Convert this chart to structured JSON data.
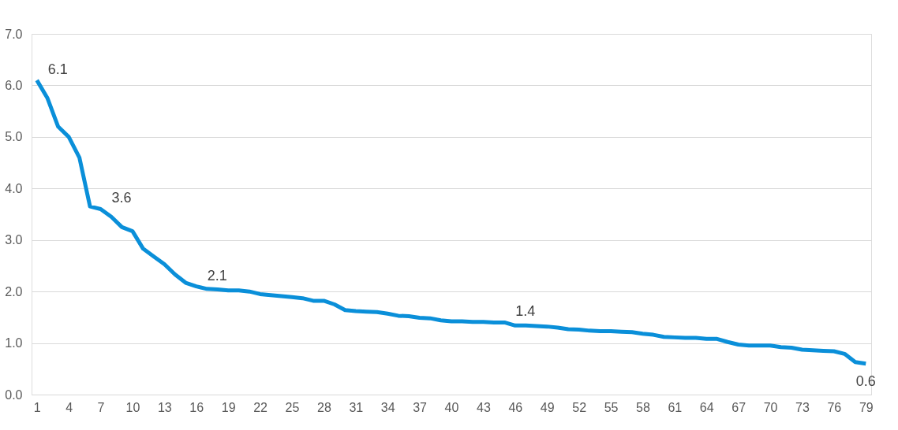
{
  "chart_data": {
    "type": "line",
    "x": [
      1,
      2,
      3,
      4,
      5,
      6,
      7,
      8,
      9,
      10,
      11,
      12,
      13,
      14,
      15,
      16,
      17,
      18,
      19,
      20,
      21,
      22,
      23,
      24,
      25,
      26,
      27,
      28,
      29,
      30,
      31,
      32,
      33,
      34,
      35,
      36,
      37,
      38,
      39,
      40,
      41,
      42,
      43,
      44,
      45,
      46,
      47,
      48,
      49,
      50,
      51,
      52,
      53,
      54,
      55,
      56,
      57,
      58,
      59,
      60,
      61,
      62,
      63,
      64,
      65,
      66,
      67,
      68,
      69,
      70,
      71,
      72,
      73,
      74,
      75,
      76,
      77,
      78,
      79
    ],
    "series": [
      {
        "color": "#0a8fd9",
        "values": [
          6.1,
          5.75,
          5.2,
          5.0,
          4.6,
          3.65,
          3.6,
          3.45,
          3.25,
          3.17,
          2.83,
          2.68,
          2.53,
          2.33,
          2.17,
          2.1,
          2.05,
          2.04,
          2.02,
          2.02,
          2.0,
          1.95,
          1.93,
          1.91,
          1.89,
          1.87,
          1.82,
          1.82,
          1.75,
          1.64,
          1.62,
          1.61,
          1.6,
          1.57,
          1.53,
          1.52,
          1.49,
          1.48,
          1.44,
          1.42,
          1.42,
          1.41,
          1.41,
          1.4,
          1.4,
          1.34,
          1.34,
          1.33,
          1.32,
          1.3,
          1.27,
          1.26,
          1.24,
          1.23,
          1.23,
          1.22,
          1.21,
          1.18,
          1.16,
          1.12,
          1.11,
          1.1,
          1.1,
          1.08,
          1.08,
          1.02,
          0.97,
          0.95,
          0.95,
          0.95,
          0.92,
          0.91,
          0.87,
          0.86,
          0.85,
          0.84,
          0.79,
          0.63,
          0.6
        ],
        "value_labels": [
          "6.1",
          null,
          null,
          null,
          null,
          null,
          "3.6",
          null,
          null,
          null,
          null,
          null,
          null,
          null,
          null,
          "2.1",
          null,
          null,
          null,
          null,
          null,
          null,
          null,
          null,
          null,
          null,
          null,
          null,
          null,
          null,
          null,
          null,
          null,
          null,
          null,
          null,
          null,
          null,
          null,
          null,
          null,
          null,
          null,
          null,
          "1.4",
          null,
          null,
          null,
          null,
          null,
          null,
          null,
          null,
          null,
          null,
          null,
          null,
          null,
          null,
          null,
          null,
          null,
          null,
          null,
          null,
          null,
          null,
          null,
          null,
          null,
          null,
          null,
          null,
          null,
          null,
          null,
          null,
          null,
          "0.6"
        ]
      }
    ],
    "xlim": [
      0.5,
      79.5
    ],
    "xticks": [
      1,
      4,
      7,
      10,
      13,
      16,
      19,
      22,
      25,
      28,
      31,
      34,
      37,
      40,
      43,
      46,
      49,
      52,
      55,
      58,
      61,
      64,
      67,
      70,
      73,
      76,
      79
    ],
    "ylim": [
      0,
      7
    ],
    "yticks": [
      {
        "value": 0,
        "label": "0.0"
      },
      {
        "value": 1,
        "label": "1.0"
      },
      {
        "value": 2,
        "label": "2.0"
      },
      {
        "value": 3,
        "label": "3.0"
      },
      {
        "value": 4,
        "label": "4.0"
      },
      {
        "value": 5,
        "label": "5.0"
      },
      {
        "value": 6,
        "label": "6.0"
      },
      {
        "value": 7,
        "label": "7.0"
      }
    ],
    "grid": "y",
    "marker": "none",
    "line_style": "solid"
  }
}
